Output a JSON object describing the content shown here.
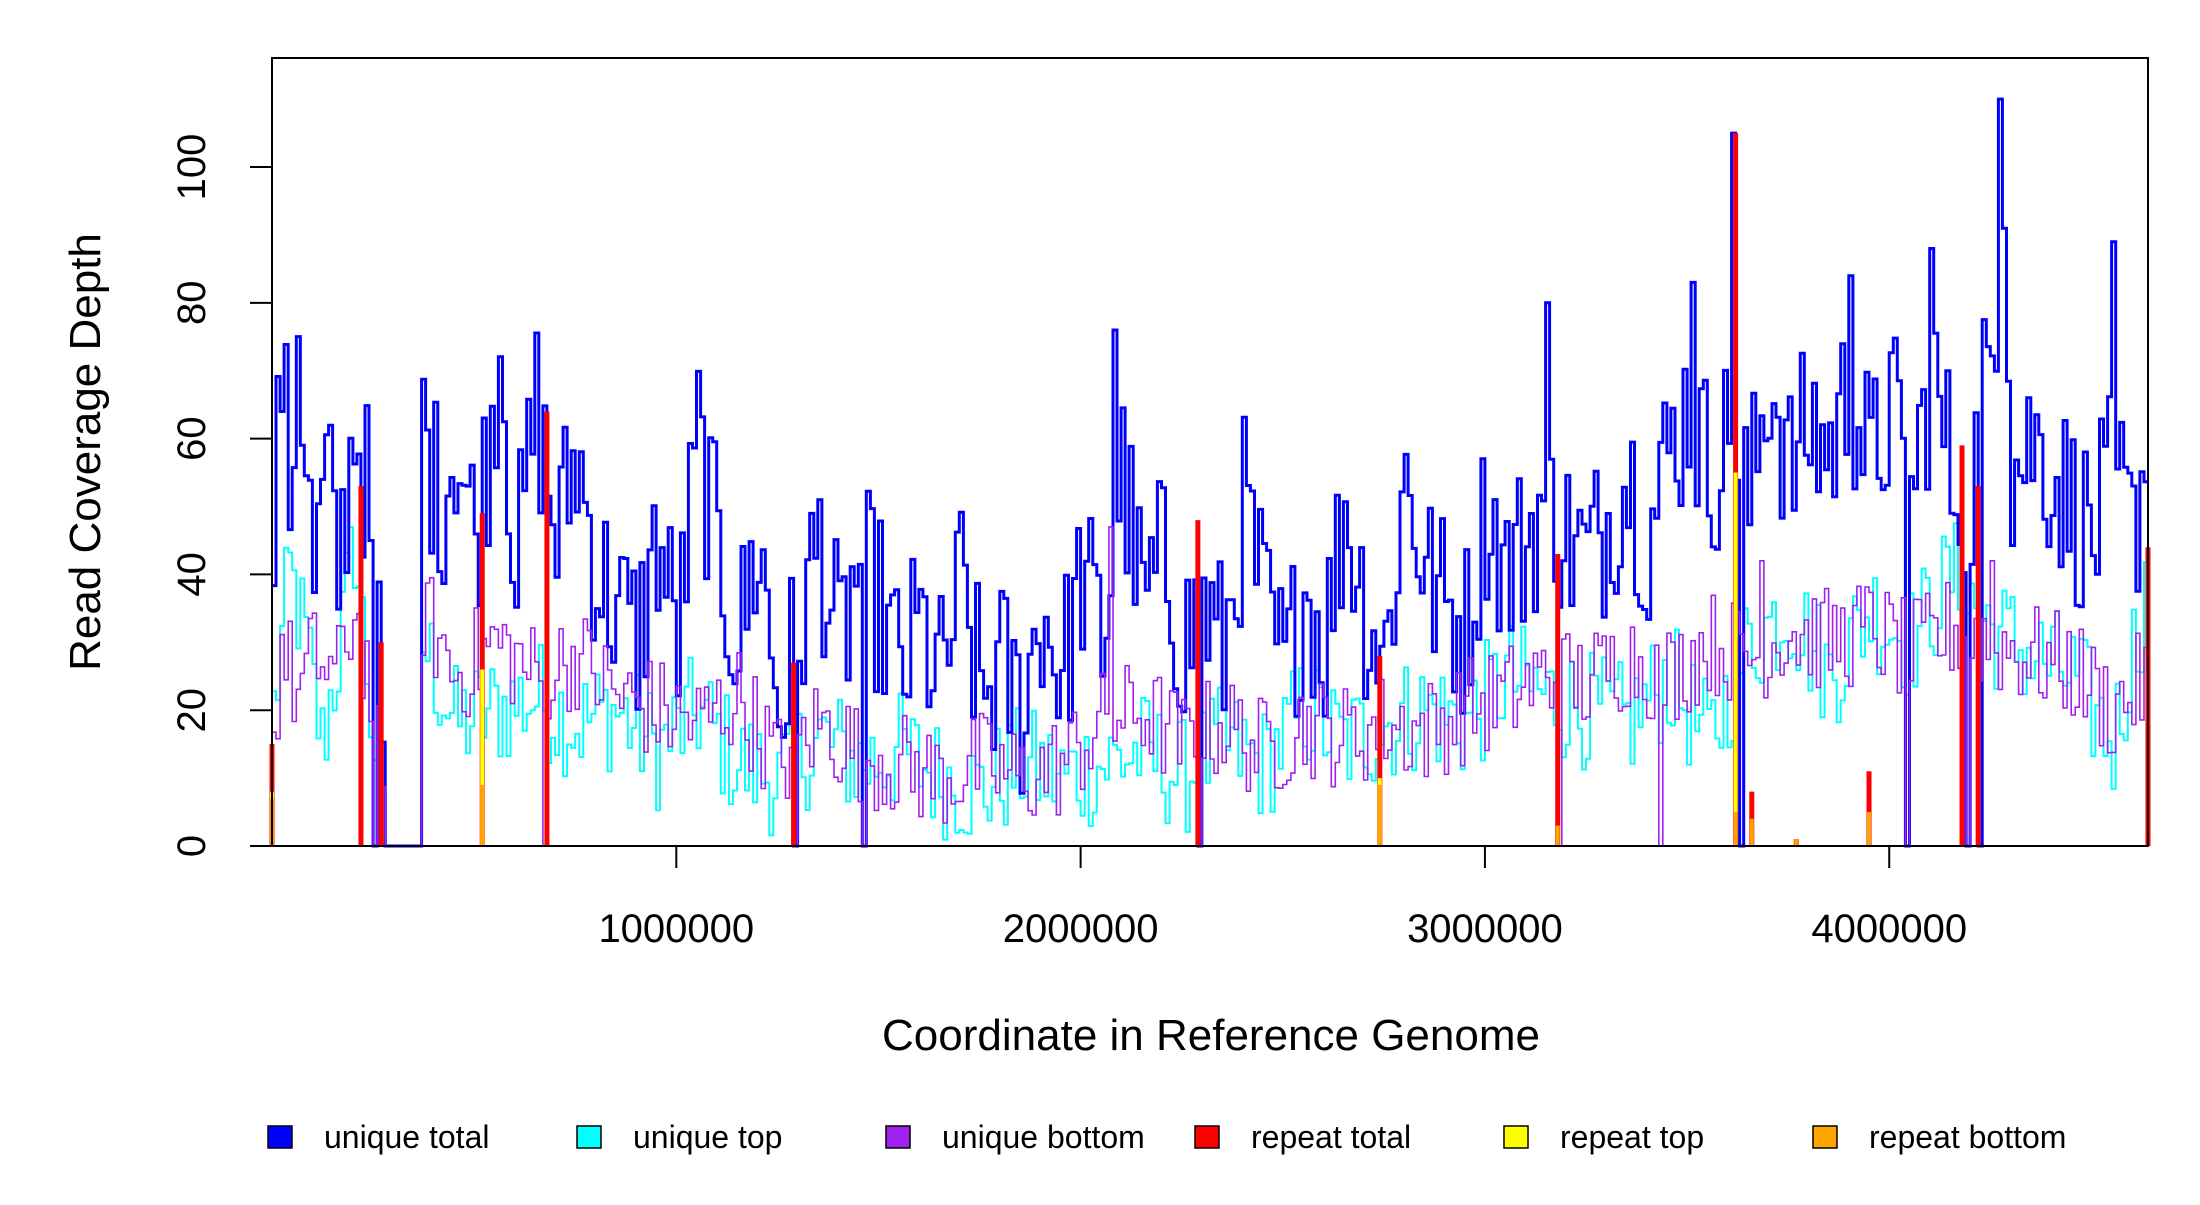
{
  "chart_data": {
    "type": "line",
    "title": "",
    "xlabel": "Coordinate in Reference Genome",
    "ylabel": "Read Coverage Depth",
    "xlim": [
      0,
      4640000
    ],
    "ylim": [
      0,
      115
    ],
    "x_ticks": [
      1000000,
      2000000,
      3000000,
      4000000
    ],
    "x_tick_labels": [
      "1000000",
      "2000000",
      "3000000",
      "4000000"
    ],
    "y_ticks": [
      0,
      20,
      40,
      60,
      80,
      100
    ],
    "y_tick_labels": [
      "0",
      "20",
      "40",
      "60",
      "80",
      "100"
    ],
    "grid": false,
    "legend_position": "bottom",
    "bin_width": 10000,
    "series": [
      {
        "name": "unique total",
        "color": "#0000FF",
        "style": "step"
      },
      {
        "name": "unique top",
        "color": "#00FFFF",
        "style": "step"
      },
      {
        "name": "unique bottom",
        "color": "#A020F0",
        "style": "step"
      },
      {
        "name": "repeat total",
        "color": "#FF0000",
        "style": "bar"
      },
      {
        "name": "repeat top",
        "color": "#FFFF00",
        "style": "bar"
      },
      {
        "name": "repeat bottom",
        "color": "#FFA500",
        "style": "bar"
      }
    ],
    "unique_total_anchors": [
      [
        0,
        44
      ],
      [
        20000,
        72
      ],
      [
        40000,
        50
      ],
      [
        60000,
        77
      ],
      [
        100000,
        38
      ],
      [
        130000,
        55
      ],
      [
        160000,
        40
      ],
      [
        200000,
        63
      ],
      [
        230000,
        52
      ],
      [
        260000,
        30
      ],
      [
        280000,
        3
      ],
      [
        300000,
        0
      ],
      [
        360000,
        0
      ],
      [
        370000,
        62
      ],
      [
        410000,
        50
      ],
      [
        450000,
        60
      ],
      [
        500000,
        45
      ],
      [
        540000,
        62
      ],
      [
        560000,
        76
      ],
      [
        600000,
        40
      ],
      [
        650000,
        65
      ],
      [
        700000,
        45
      ],
      [
        750000,
        58
      ],
      [
        800000,
        40
      ],
      [
        850000,
        35
      ],
      [
        900000,
        30
      ],
      [
        950000,
        45
      ],
      [
        1000000,
        30
      ],
      [
        1050000,
        60
      ],
      [
        1100000,
        42
      ],
      [
        1150000,
        30
      ],
      [
        1200000,
        45
      ],
      [
        1250000,
        20
      ],
      [
        1300000,
        32
      ],
      [
        1350000,
        45
      ],
      [
        1400000,
        28
      ],
      [
        1450000,
        42
      ],
      [
        1500000,
        35
      ],
      [
        1550000,
        25
      ],
      [
        1600000,
        32
      ],
      [
        1650000,
        24
      ],
      [
        1700000,
        38
      ],
      [
        1750000,
        22
      ],
      [
        1800000,
        26
      ],
      [
        1850000,
        20
      ],
      [
        1900000,
        35
      ],
      [
        1950000,
        25
      ],
      [
        2000000,
        40
      ],
      [
        2050000,
        30
      ],
      [
        2100000,
        55
      ],
      [
        2150000,
        35
      ],
      [
        2200000,
        42
      ],
      [
        2250000,
        30
      ],
      [
        2300000,
        35
      ],
      [
        2350000,
        28
      ],
      [
        2400000,
        50
      ],
      [
        2450000,
        35
      ],
      [
        2500000,
        25
      ],
      [
        2550000,
        38
      ],
      [
        2600000,
        30
      ],
      [
        2650000,
        50
      ],
      [
        2700000,
        35
      ],
      [
        2750000,
        28
      ],
      [
        2800000,
        55
      ],
      [
        2850000,
        40
      ],
      [
        2900000,
        35
      ],
      [
        2950000,
        32
      ],
      [
        3000000,
        50
      ],
      [
        3050000,
        40
      ],
      [
        3100000,
        45
      ],
      [
        3150000,
        52
      ],
      [
        3200000,
        45
      ],
      [
        3250000,
        42
      ],
      [
        3300000,
        48
      ],
      [
        3350000,
        55
      ],
      [
        3400000,
        45
      ],
      [
        3450000,
        58
      ],
      [
        3500000,
        65
      ],
      [
        3550000,
        55
      ],
      [
        3600000,
        60
      ],
      [
        3650000,
        50
      ],
      [
        3700000,
        70
      ],
      [
        3750000,
        55
      ],
      [
        3800000,
        62
      ],
      [
        3850000,
        58
      ],
      [
        3900000,
        68
      ],
      [
        3950000,
        55
      ],
      [
        4000000,
        65
      ],
      [
        4050000,
        50
      ],
      [
        4100000,
        70
      ],
      [
        4150000,
        55
      ],
      [
        4200000,
        52
      ],
      [
        4250000,
        75
      ],
      [
        4280000,
        100
      ],
      [
        4300000,
        55
      ],
      [
        4350000,
        60
      ],
      [
        4400000,
        55
      ],
      [
        4450000,
        50
      ],
      [
        4500000,
        45
      ],
      [
        4550000,
        55
      ],
      [
        4600000,
        45
      ],
      [
        4640000,
        65
      ]
    ],
    "unique_total_spikes": [
      [
        250000,
        0
      ],
      [
        1290000,
        0
      ],
      [
        1460000,
        0
      ],
      [
        2290000,
        0
      ],
      [
        3630000,
        0
      ],
      [
        4040000,
        0
      ],
      [
        4190000,
        0
      ],
      [
        4220000,
        0
      ],
      [
        4640000,
        0
      ],
      [
        3510000,
        83
      ],
      [
        3900000,
        84
      ],
      [
        4270000,
        110
      ],
      [
        4100000,
        88
      ],
      [
        4550000,
        89
      ],
      [
        3610000,
        105
      ],
      [
        2080000,
        76
      ],
      [
        3150000,
        80
      ]
    ],
    "unique_bottom_anchors": [
      [
        0,
        15
      ],
      [
        20000,
        30
      ],
      [
        60000,
        22
      ],
      [
        100000,
        28
      ],
      [
        160000,
        25
      ],
      [
        200000,
        35
      ],
      [
        250000,
        20
      ],
      [
        280000,
        0
      ],
      [
        360000,
        0
      ],
      [
        370000,
        35
      ],
      [
        450000,
        25
      ],
      [
        550000,
        30
      ],
      [
        650000,
        25
      ],
      [
        750000,
        28
      ],
      [
        850000,
        22
      ],
      [
        950000,
        20
      ],
      [
        1050000,
        18
      ],
      [
        1150000,
        22
      ],
      [
        1250000,
        12
      ],
      [
        1350000,
        18
      ],
      [
        1450000,
        14
      ],
      [
        1550000,
        12
      ],
      [
        1650000,
        10
      ],
      [
        1750000,
        12
      ],
      [
        1850000,
        10
      ],
      [
        1950000,
        12
      ],
      [
        2050000,
        18
      ],
      [
        2150000,
        20
      ],
      [
        2250000,
        15
      ],
      [
        2350000,
        18
      ],
      [
        2450000,
        14
      ],
      [
        2550000,
        18
      ],
      [
        2650000,
        16
      ],
      [
        2750000,
        18
      ],
      [
        2850000,
        17
      ],
      [
        2950000,
        20
      ],
      [
        3050000,
        22
      ],
      [
        3150000,
        25
      ],
      [
        3250000,
        24
      ],
      [
        3350000,
        28
      ],
      [
        3450000,
        25
      ],
      [
        3550000,
        30
      ],
      [
        3650000,
        28
      ],
      [
        3750000,
        32
      ],
      [
        3850000,
        30
      ],
      [
        3950000,
        32
      ],
      [
        4050000,
        28
      ],
      [
        4150000,
        32
      ],
      [
        4250000,
        30
      ],
      [
        4350000,
        28
      ],
      [
        4450000,
        26
      ],
      [
        4550000,
        20
      ],
      [
        4640000,
        25
      ]
    ],
    "unique_bottom_spikes": [
      [
        250000,
        0
      ],
      [
        670000,
        0
      ],
      [
        1290000,
        0
      ],
      [
        1460000,
        0
      ],
      [
        2290000,
        0
      ],
      [
        3180000,
        0
      ],
      [
        3430000,
        0
      ],
      [
        4040000,
        0
      ],
      [
        4190000,
        0
      ],
      [
        4640000,
        0
      ],
      [
        2070000,
        47
      ],
      [
        3680000,
        42
      ],
      [
        4250000,
        42
      ]
    ],
    "unique_top_anchors": [
      [
        0,
        20
      ],
      [
        40000,
        40
      ],
      [
        80000,
        30
      ],
      [
        120000,
        15
      ],
      [
        160000,
        28
      ],
      [
        200000,
        45
      ],
      [
        240000,
        20
      ],
      [
        280000,
        0
      ],
      [
        360000,
        0
      ],
      [
        370000,
        30
      ],
      [
        450000,
        18
      ],
      [
        550000,
        20
      ],
      [
        650000,
        22
      ],
      [
        750000,
        18
      ],
      [
        850000,
        20
      ],
      [
        950000,
        14
      ],
      [
        1050000,
        20
      ],
      [
        1150000,
        12
      ],
      [
        1250000,
        10
      ],
      [
        1350000,
        16
      ],
      [
        1450000,
        12
      ],
      [
        1550000,
        14
      ],
      [
        1650000,
        10
      ],
      [
        1750000,
        8
      ],
      [
        1850000,
        12
      ],
      [
        1950000,
        10
      ],
      [
        2050000,
        12
      ],
      [
        2150000,
        14
      ],
      [
        2250000,
        10
      ],
      [
        2350000,
        15
      ],
      [
        2450000,
        12
      ],
      [
        2550000,
        20
      ],
      [
        2650000,
        15
      ],
      [
        2750000,
        18
      ],
      [
        2850000,
        20
      ],
      [
        2950000,
        18
      ],
      [
        3050000,
        25
      ],
      [
        3150000,
        22
      ],
      [
        3250000,
        20
      ],
      [
        3350000,
        18
      ],
      [
        3450000,
        25
      ],
      [
        3550000,
        15
      ],
      [
        3650000,
        30
      ],
      [
        3750000,
        35
      ],
      [
        3850000,
        25
      ],
      [
        3950000,
        35
      ],
      [
        4050000,
        30
      ],
      [
        4150000,
        40
      ],
      [
        4250000,
        32
      ],
      [
        4350000,
        28
      ],
      [
        4450000,
        25
      ],
      [
        4550000,
        15
      ],
      [
        4640000,
        40
      ]
    ],
    "repeat_total_bars": [
      [
        0,
        15
      ],
      [
        220000,
        53
      ],
      [
        270000,
        30
      ],
      [
        520000,
        49
      ],
      [
        680000,
        64
      ],
      [
        1290000,
        27
      ],
      [
        2290000,
        48
      ],
      [
        2740000,
        28
      ],
      [
        3180000,
        43
      ],
      [
        3620000,
        105
      ],
      [
        3660000,
        8
      ],
      [
        3770000,
        1
      ],
      [
        3950000,
        11
      ],
      [
        4180000,
        59
      ],
      [
        4220000,
        53
      ],
      [
        4640000,
        44
      ]
    ],
    "repeat_top_bars": [
      [
        0,
        8
      ],
      [
        520000,
        26
      ],
      [
        3620000,
        55
      ],
      [
        2740000,
        10
      ]
    ],
    "repeat_bottom_bars": [
      [
        0,
        7
      ],
      [
        520000,
        9
      ],
      [
        2740000,
        9
      ],
      [
        3180000,
        3
      ],
      [
        3620000,
        5
      ],
      [
        3660000,
        4
      ],
      [
        3770000,
        1
      ],
      [
        3950000,
        5
      ]
    ]
  }
}
